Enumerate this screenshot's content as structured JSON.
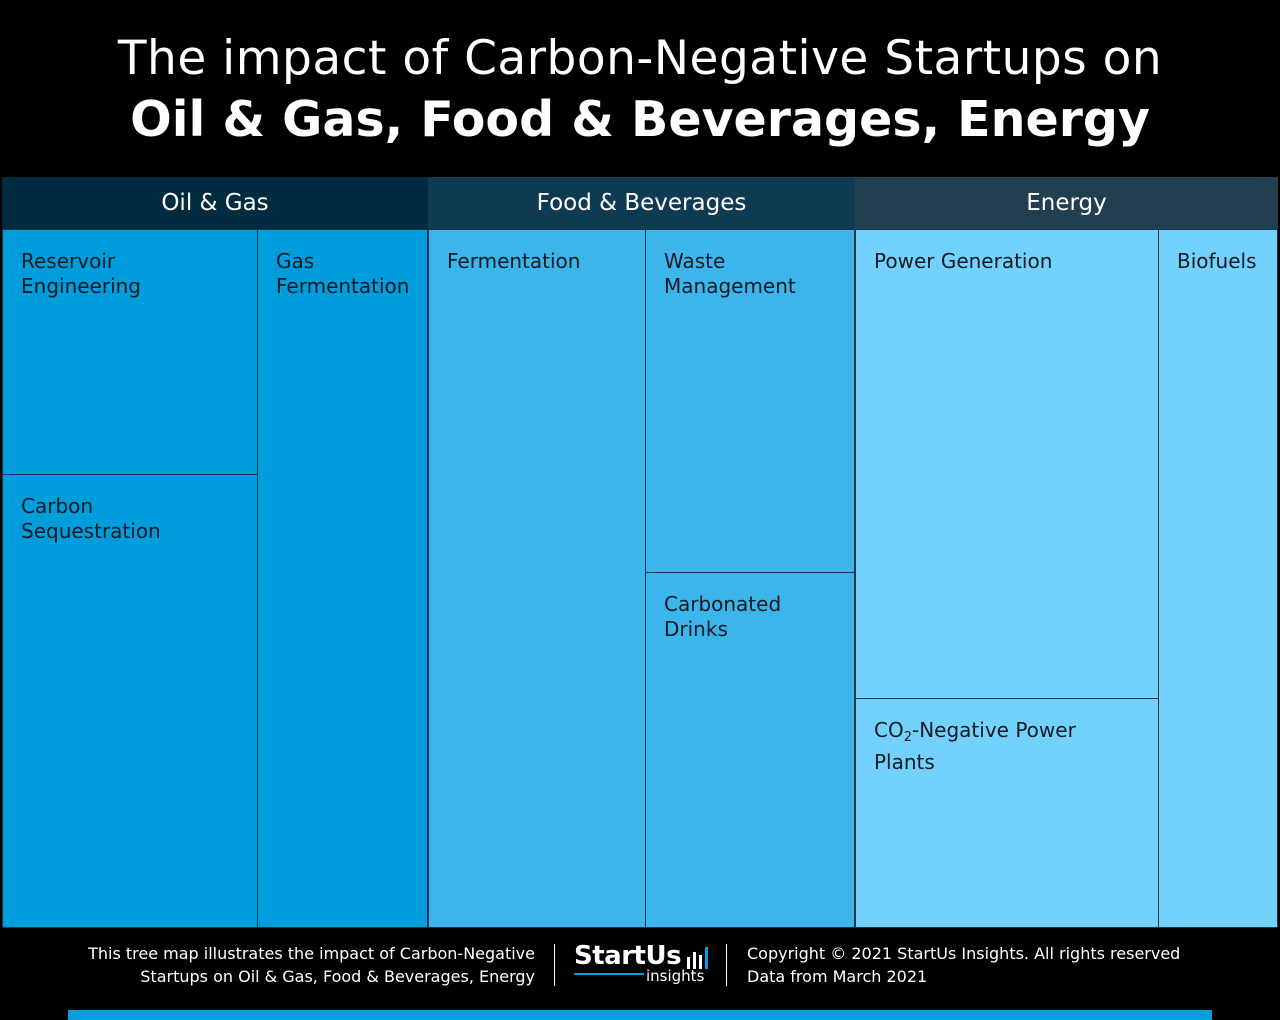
{
  "title": {
    "line1": "The impact of Carbon-Negative Startups on",
    "line2": "Oil & Gas, Food & Beverages, Energy"
  },
  "chart_data": {
    "type": "treemap",
    "title": "The impact of Carbon-Negative Startups on Oil & Gas, Food & Beverages, Energy",
    "groups": [
      {
        "name": "Oil & Gas",
        "header_color": "#012b3f",
        "cell_color": "#009ddc",
        "items": [
          {
            "label": "Reservoir Engineering",
            "value": 1
          },
          {
            "label": "Carbon Sequestration",
            "value": 1.5
          },
          {
            "label": "Gas Fermentation",
            "value": 1.7
          }
        ]
      },
      {
        "name": "Food & Beverages",
        "header_color": "#0f3b52",
        "cell_color": "#3bb5eb",
        "items": [
          {
            "label": "Fermentation",
            "value": 2.2
          },
          {
            "label": "Waste Management",
            "value": 1.2
          },
          {
            "label": "Carbonated Drinks",
            "value": 1
          }
        ]
      },
      {
        "name": "Energy",
        "header_color": "#213f50",
        "cell_color": "#72d1fd",
        "items": [
          {
            "label": "Power Generation",
            "value": 2.5
          },
          {
            "label_prefix": "CO",
            "label_sub": "2",
            "label_suffix": "-Negative Power Plants",
            "value": 1.2
          },
          {
            "label": "Biofuels",
            "value": 1.2
          }
        ]
      }
    ]
  },
  "footer": {
    "description_line1": "This tree map illustrates the impact of Carbon-Negative",
    "description_line2": "Startups on Oil & Gas, Food & Beverages, Energy",
    "logo_word": "StartUs",
    "logo_sub": "insights",
    "copyright": "Copyright © 2021 StartUs Insights. All rights reserved",
    "data_date": "Data from March 2021"
  },
  "colors": {
    "background": "#000000",
    "accent": "#00a0e0"
  }
}
